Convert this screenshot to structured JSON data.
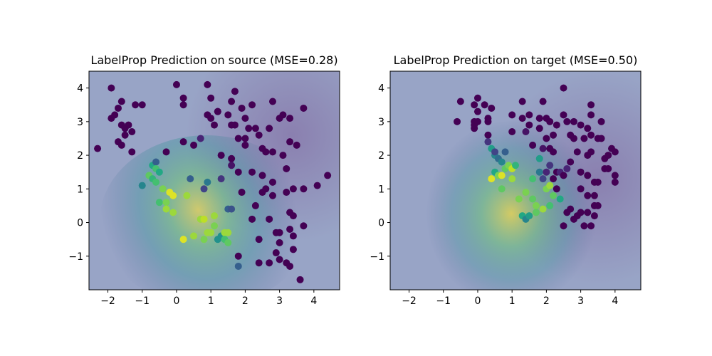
{
  "chart_data": [
    {
      "type": "scatter",
      "title": "LabelProp Prediction on source (MSE=0.28)",
      "xlabel": "",
      "ylabel": "",
      "xlim": [
        -2.55,
        4.75
      ],
      "ylim": [
        -2.0,
        4.5
      ],
      "xticks": [
        "−2",
        "−1",
        "0",
        "1",
        "2",
        "3",
        "4"
      ],
      "yticks": [
        "−1",
        "0",
        "1",
        "2",
        "3",
        "4"
      ],
      "colormap": "viridis",
      "color_range": [
        0,
        1
      ],
      "background": {
        "type": "heatmap",
        "cmap": "viridis",
        "alpha": 0.5,
        "description": "predicted label surface; peak near (1,0)",
        "peak": [
          1.0,
          0.0
        ],
        "peak_value": 1.0
      },
      "grid": false,
      "legend": "none",
      "points": [
        [
          -2.3,
          2.2,
          0
        ],
        [
          -1.9,
          4.0,
          0
        ],
        [
          -1.9,
          3.1,
          0
        ],
        [
          -1.8,
          3.2,
          0
        ],
        [
          -1.7,
          3.4,
          0
        ],
        [
          -1.7,
          2.4,
          0
        ],
        [
          -1.6,
          2.3,
          0
        ],
        [
          -1.6,
          3.6,
          0
        ],
        [
          -1.6,
          2.9,
          0
        ],
        [
          -1.5,
          2.6,
          0
        ],
        [
          -1.5,
          2.8,
          0
        ],
        [
          -1.4,
          2.9,
          0
        ],
        [
          -1.3,
          2.1,
          0
        ],
        [
          -1.3,
          2.7,
          0
        ],
        [
          -1.2,
          3.5,
          0
        ],
        [
          -1.0,
          3.5,
          0
        ],
        [
          -1.0,
          1.1,
          0.45
        ],
        [
          -0.8,
          1.4,
          0.75
        ],
        [
          -0.7,
          1.3,
          0.65
        ],
        [
          -0.7,
          1.7,
          0.6
        ],
        [
          -0.6,
          1.8,
          0.3
        ],
        [
          -0.6,
          1.6,
          0.7
        ],
        [
          -0.5,
          1.5,
          0.6
        ],
        [
          -0.6,
          1.2,
          0.7
        ],
        [
          -0.5,
          0.6,
          0.7
        ],
        [
          -0.4,
          1.0,
          0.8
        ],
        [
          -0.3,
          0.6,
          0.8
        ],
        [
          -0.3,
          0.4,
          0.85
        ],
        [
          -0.2,
          0.9,
          0.95
        ],
        [
          -0.1,
          0.3,
          0.85
        ],
        [
          -0.1,
          0.8,
          0.95
        ],
        [
          -0.3,
          2.1,
          0
        ],
        [
          0.0,
          4.1,
          0
        ],
        [
          0.2,
          3.5,
          0
        ],
        [
          0.2,
          3.7,
          0
        ],
        [
          0.2,
          2.4,
          0
        ],
        [
          0.2,
          -0.5,
          0.95
        ],
        [
          0.3,
          0.8,
          0.85
        ],
        [
          0.4,
          1.3,
          0.3
        ],
        [
          0.5,
          2.3,
          0
        ],
        [
          0.5,
          -0.4,
          0.85
        ],
        [
          0.7,
          0.1,
          0.85
        ],
        [
          0.7,
          2.5,
          0.1
        ],
        [
          0.8,
          -0.5,
          0.8
        ],
        [
          0.8,
          0.1,
          0.9
        ],
        [
          0.9,
          -0.3,
          0.85
        ],
        [
          0.9,
          1.2,
          0.4
        ],
        [
          0.8,
          1.0,
          0.2
        ],
        [
          0.9,
          4.1,
          0
        ],
        [
          0.9,
          3.2,
          0
        ],
        [
          1.0,
          3.1,
          0
        ],
        [
          1.0,
          3.7,
          0
        ],
        [
          1.0,
          -0.3,
          0.85
        ],
        [
          1.1,
          0.2,
          0.85
        ],
        [
          1.1,
          -0.1,
          0.8
        ],
        [
          1.1,
          2.9,
          0
        ],
        [
          1.2,
          3.3,
          0
        ],
        [
          1.2,
          -0.5,
          0.5
        ],
        [
          1.3,
          -0.4,
          0.5
        ],
        [
          1.3,
          2.0,
          0
        ],
        [
          1.3,
          1.3,
          0.15
        ],
        [
          1.4,
          -0.3,
          0.85
        ],
        [
          1.4,
          -0.5,
          0.7
        ],
        [
          1.5,
          -0.6,
          0.75
        ],
        [
          1.5,
          0.4,
          0.3
        ],
        [
          1.5,
          3.2,
          0
        ],
        [
          1.5,
          -0.3,
          0.85
        ],
        [
          1.6,
          1.9,
          0
        ],
        [
          1.6,
          1.7,
          0.05
        ],
        [
          1.6,
          0.4,
          0.25
        ],
        [
          1.6,
          3.6,
          0
        ],
        [
          1.7,
          3.9,
          0
        ],
        [
          1.7,
          2.9,
          0
        ],
        [
          1.8,
          -1.0,
          0
        ],
        [
          1.8,
          -1.3,
          0.3
        ],
        [
          1.8,
          2.5,
          0
        ],
        [
          1.8,
          1.5,
          0
        ],
        [
          1.9,
          3.4,
          0
        ],
        [
          1.9,
          0.9,
          0
        ],
        [
          2.0,
          2.5,
          0
        ],
        [
          2.0,
          2.3,
          0
        ],
        [
          2.1,
          2.8,
          0
        ],
        [
          2.2,
          3.5,
          0
        ],
        [
          2.2,
          1.5,
          0
        ],
        [
          2.2,
          0.1,
          0
        ],
        [
          2.3,
          0.5,
          0
        ],
        [
          2.3,
          2.8,
          0
        ],
        [
          2.4,
          -1.2,
          0
        ],
        [
          2.4,
          -0.5,
          0
        ],
        [
          2.4,
          2.6,
          0
        ],
        [
          2.5,
          1.4,
          0
        ],
        [
          2.5,
          0.9,
          0
        ],
        [
          2.6,
          1.0,
          0
        ],
        [
          2.6,
          2.1,
          0
        ],
        [
          2.7,
          2.8,
          0
        ],
        [
          2.7,
          -1.2,
          0
        ],
        [
          2.7,
          0.1,
          0
        ],
        [
          2.8,
          0.8,
          0
        ],
        [
          2.8,
          1.2,
          0
        ],
        [
          2.8,
          2.1,
          0
        ],
        [
          2.8,
          3.6,
          0
        ],
        [
          2.9,
          -0.3,
          0
        ],
        [
          2.9,
          -0.9,
          0
        ],
        [
          3.0,
          -1.1,
          0
        ],
        [
          3.0,
          -0.3,
          0
        ],
        [
          3.0,
          -0.6,
          0
        ],
        [
          3.0,
          3.1,
          0
        ],
        [
          3.1,
          3.2,
          0
        ],
        [
          3.1,
          2.0,
          0
        ],
        [
          3.2,
          1.6,
          0
        ],
        [
          3.2,
          0.9,
          0
        ],
        [
          3.2,
          -1.2,
          0
        ],
        [
          3.3,
          -1.3,
          0
        ],
        [
          3.3,
          0.3,
          0
        ],
        [
          3.3,
          -0.2,
          0
        ],
        [
          3.3,
          2.4,
          0
        ],
        [
          3.3,
          3.1,
          0
        ],
        [
          3.4,
          -0.4,
          0
        ],
        [
          3.4,
          -0.8,
          0
        ],
        [
          3.4,
          1.0,
          0
        ],
        [
          3.4,
          0.2,
          0
        ],
        [
          3.5,
          2.3,
          0
        ],
        [
          3.6,
          -1.7,
          0
        ],
        [
          3.7,
          1.0,
          0
        ],
        [
          3.7,
          -0.1,
          0
        ],
        [
          3.7,
          3.4,
          0
        ],
        [
          4.1,
          1.1,
          0
        ],
        [
          4.4,
          1.4,
          0
        ],
        [
          1.2,
          3.3,
          0
        ],
        [
          1.6,
          2.9,
          0
        ],
        [
          2.0,
          3.1,
          0
        ],
        [
          2.5,
          2.2,
          0
        ]
      ]
    },
    {
      "type": "scatter",
      "title": "LabelProp Prediction on target (MSE=0.50)",
      "xlabel": "",
      "ylabel": "",
      "xlim": [
        -2.55,
        4.75
      ],
      "ylim": [
        -2.0,
        4.5
      ],
      "xticks": [
        "−2",
        "−1",
        "0",
        "1",
        "2",
        "3",
        "4"
      ],
      "yticks": [
        "−1",
        "0",
        "1",
        "2",
        "3",
        "4"
      ],
      "colormap": "viridis",
      "color_range": [
        0,
        1
      ],
      "background": {
        "type": "heatmap",
        "cmap": "viridis",
        "alpha": 0.5,
        "description": "predicted label surface; peak near (1,0.2)",
        "peak": [
          1.0,
          0.2
        ],
        "peak_value": 1.0
      },
      "grid": false,
      "legend": "none",
      "points": [
        [
          -0.6,
          3.0,
          0
        ],
        [
          -0.5,
          3.6,
          0
        ],
        [
          -0.1,
          2.8,
          0
        ],
        [
          -0.1,
          2.9,
          0
        ],
        [
          -0.1,
          3.0,
          0
        ],
        [
          -0.1,
          3.5,
          0
        ],
        [
          0.0,
          3.0,
          0
        ],
        [
          0.0,
          3.3,
          0
        ],
        [
          0.0,
          3.7,
          0
        ],
        [
          0.2,
          3.5,
          0
        ],
        [
          0.3,
          3.0,
          0
        ],
        [
          0.3,
          2.6,
          0
        ],
        [
          0.3,
          3.1,
          0
        ],
        [
          0.3,
          2.4,
          0.15
        ],
        [
          0.4,
          3.4,
          0
        ],
        [
          0.4,
          2.2,
          0.55
        ],
        [
          0.4,
          1.3,
          0.95
        ],
        [
          0.5,
          2.0,
          0.45
        ],
        [
          0.5,
          1.5,
          0.6
        ],
        [
          0.5,
          2.1,
          0.2
        ],
        [
          0.6,
          1.9,
          0.35
        ],
        [
          0.6,
          1.4,
          0.8
        ],
        [
          0.7,
          1.0,
          0.75
        ],
        [
          0.7,
          1.4,
          0.95
        ],
        [
          0.7,
          1.8,
          0.45
        ],
        [
          0.8,
          1.6,
          0.75
        ],
        [
          0.8,
          2.1,
          0.3
        ],
        [
          0.9,
          1.7,
          0.8
        ],
        [
          1.0,
          1.6,
          0.9
        ],
        [
          1.0,
          1.3,
          0.85
        ],
        [
          1.0,
          2.7,
          0
        ],
        [
          1.0,
          3.2,
          0
        ],
        [
          1.1,
          1.7,
          0.65
        ],
        [
          1.2,
          0.7,
          0.8
        ],
        [
          1.3,
          0.2,
          0.6
        ],
        [
          1.3,
          3.1,
          0
        ],
        [
          1.3,
          3.6,
          0
        ],
        [
          1.4,
          2.7,
          0.05
        ],
        [
          1.4,
          0.1,
          0.45
        ],
        [
          1.4,
          0.9,
          0.8
        ],
        [
          1.5,
          0.2,
          0.55
        ],
        [
          1.5,
          3.2,
          0
        ],
        [
          1.5,
          2.9,
          0
        ],
        [
          1.6,
          0.7,
          0.75
        ],
        [
          1.6,
          1.3,
          0.7
        ],
        [
          1.7,
          0.5,
          0.8
        ],
        [
          1.7,
          0.3,
          0.75
        ],
        [
          1.8,
          3.1,
          0
        ],
        [
          1.8,
          1.9,
          0.55
        ],
        [
          1.8,
          2.8,
          0
        ],
        [
          1.8,
          1.5,
          0.4
        ],
        [
          1.9,
          0.4,
          0.85
        ],
        [
          1.9,
          1.3,
          0.2
        ],
        [
          1.9,
          2.2,
          0.05
        ],
        [
          1.9,
          3.6,
          0
        ],
        [
          2.0,
          3.1,
          0
        ],
        [
          2.0,
          1.5,
          0.1
        ],
        [
          2.0,
          1.0,
          0.8
        ],
        [
          2.1,
          1.1,
          0.85
        ],
        [
          2.1,
          0.5,
          0.7
        ],
        [
          2.1,
          2.2,
          0
        ],
        [
          2.1,
          1.7,
          0.15
        ],
        [
          2.1,
          3.0,
          0
        ],
        [
          2.2,
          0.8,
          0.75
        ],
        [
          2.2,
          2.6,
          0
        ],
        [
          2.2,
          2.1,
          0
        ],
        [
          2.2,
          1.3,
          0
        ],
        [
          2.3,
          2.9,
          0
        ],
        [
          2.3,
          1.5,
          0
        ],
        [
          2.3,
          1.0,
          0
        ],
        [
          2.4,
          1.5,
          0.1
        ],
        [
          2.4,
          0.7,
          0.6
        ],
        [
          2.5,
          3.2,
          0
        ],
        [
          2.5,
          4.0,
          0
        ],
        [
          2.5,
          1.4,
          0
        ],
        [
          2.5,
          -0.1,
          0
        ],
        [
          2.6,
          0.3,
          0
        ],
        [
          2.6,
          3.0,
          0
        ],
        [
          2.6,
          1.6,
          0.1
        ],
        [
          2.7,
          0.4,
          0
        ],
        [
          2.7,
          2.6,
          0
        ],
        [
          2.7,
          1.8,
          0
        ],
        [
          2.8,
          2.5,
          0
        ],
        [
          2.8,
          3.0,
          0
        ],
        [
          2.8,
          0.1,
          0
        ],
        [
          2.9,
          0.2,
          0
        ],
        [
          2.9,
          2.1,
          0
        ],
        [
          3.0,
          1.5,
          0
        ],
        [
          3.0,
          2.9,
          0
        ],
        [
          3.0,
          1.0,
          0
        ],
        [
          3.0,
          0.3,
          0
        ],
        [
          3.1,
          -0.1,
          0
        ],
        [
          3.1,
          2.5,
          0
        ],
        [
          3.2,
          2.0,
          0
        ],
        [
          3.2,
          2.8,
          0
        ],
        [
          3.2,
          1.4,
          0
        ],
        [
          3.2,
          0.8,
          0
        ],
        [
          3.2,
          0.3,
          0
        ],
        [
          3.3,
          3.5,
          0
        ],
        [
          3.3,
          2.6,
          0
        ],
        [
          3.3,
          3.2,
          0
        ],
        [
          3.3,
          2.1,
          0
        ],
        [
          3.3,
          -0.1,
          0
        ],
        [
          3.4,
          0.2,
          0
        ],
        [
          3.4,
          0.8,
          0
        ],
        [
          3.4,
          0.5,
          0
        ],
        [
          3.4,
          1.2,
          0
        ],
        [
          3.5,
          1.2,
          0
        ],
        [
          3.5,
          2.5,
          0
        ],
        [
          3.5,
          0.5,
          0
        ],
        [
          3.6,
          3.0,
          0
        ],
        [
          3.6,
          2.5,
          0
        ],
        [
          3.7,
          1.6,
          0
        ],
        [
          3.7,
          1.9,
          0
        ],
        [
          3.8,
          1.6,
          0
        ],
        [
          3.8,
          2.0,
          0
        ],
        [
          3.9,
          2.2,
          0
        ],
        [
          4.0,
          1.4,
          0
        ],
        [
          4.0,
          1.2,
          0
        ],
        [
          4.0,
          2.1,
          0
        ],
        [
          1.6,
          2.3,
          0
        ],
        [
          2.0,
          2.5,
          0
        ]
      ]
    }
  ]
}
